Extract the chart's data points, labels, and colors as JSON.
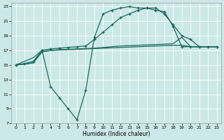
{
  "xlabel": "Humidex (Indice chaleur)",
  "bg_color": "#cce8e8",
  "grid_color": "#ffffff",
  "line_color": "#1a6b5e",
  "xlim": [
    -0.5,
    23.5
  ],
  "ylim": [
    7,
    23.5
  ],
  "xticks": [
    0,
    1,
    2,
    3,
    4,
    5,
    6,
    7,
    8,
    9,
    10,
    11,
    12,
    13,
    14,
    15,
    16,
    17,
    18,
    19,
    20,
    21,
    22,
    23
  ],
  "yticks": [
    7,
    9,
    11,
    13,
    15,
    17,
    19,
    21,
    23
  ],
  "curve_A": {
    "x": [
      0,
      1,
      2,
      3,
      4,
      5,
      6,
      7,
      8,
      9,
      10,
      11,
      12,
      13,
      14,
      15,
      16,
      17,
      18,
      19,
      20,
      21,
      22,
      23
    ],
    "y": [
      15.0,
      15.2,
      15.5,
      17.0,
      17.2,
      17.3,
      17.4,
      17.5,
      17.6,
      18.5,
      19.5,
      20.5,
      21.5,
      22.0,
      22.5,
      22.8,
      22.8,
      22.0,
      20.5,
      19.0,
      18.5,
      17.5,
      17.5,
      17.5
    ]
  },
  "curve_B": {
    "x": [
      0,
      1,
      2,
      3,
      4,
      5,
      6,
      7,
      8,
      9,
      10,
      11,
      12,
      13,
      14,
      15,
      16,
      17,
      18,
      19,
      20,
      21,
      22,
      23
    ],
    "y": [
      15.0,
      15.1,
      15.3,
      16.8,
      17.0,
      17.05,
      17.1,
      17.15,
      17.2,
      17.25,
      17.3,
      17.35,
      17.4,
      17.45,
      17.5,
      17.55,
      17.6,
      17.65,
      17.7,
      17.7,
      17.5,
      17.5,
      17.5,
      17.5
    ]
  },
  "curve_C": {
    "x": [
      0,
      1,
      2,
      3,
      4,
      5,
      6,
      7,
      8,
      9,
      10,
      11,
      12,
      13,
      14,
      15,
      16,
      17,
      18,
      19,
      20,
      21,
      22,
      23
    ],
    "y": [
      15.0,
      15.1,
      15.3,
      16.8,
      17.0,
      17.1,
      17.15,
      17.2,
      17.25,
      17.3,
      17.4,
      17.5,
      17.6,
      17.65,
      17.7,
      17.75,
      17.8,
      17.85,
      17.9,
      18.8,
      17.5,
      17.5,
      17.5,
      17.5
    ]
  },
  "curve_D": {
    "x": [
      0,
      1,
      2,
      3,
      4,
      5,
      6,
      7,
      8,
      9,
      10,
      11,
      12,
      13,
      14,
      15,
      16,
      17,
      18,
      19,
      20,
      21,
      22,
      23
    ],
    "y": [
      15.0,
      15.5,
      16.0,
      17.0,
      12.0,
      10.5,
      9.0,
      7.5,
      11.5,
      18.8,
      22.0,
      22.5,
      22.8,
      23.0,
      22.8,
      22.8,
      22.5,
      22.3,
      20.3,
      17.5,
      17.5,
      17.5,
      17.5,
      17.5
    ],
    "marker_x": [
      0,
      3,
      4,
      5,
      6,
      7,
      8,
      9,
      10,
      11,
      12,
      13,
      14,
      15,
      16,
      17,
      18,
      19,
      20,
      21,
      22,
      23
    ],
    "marker_y": [
      15.0,
      17.0,
      12.0,
      10.5,
      9.0,
      7.5,
      11.5,
      18.8,
      22.0,
      22.5,
      22.8,
      23.0,
      22.8,
      22.8,
      22.5,
      22.3,
      20.3,
      17.5,
      17.5,
      17.5,
      17.5,
      17.5
    ]
  }
}
